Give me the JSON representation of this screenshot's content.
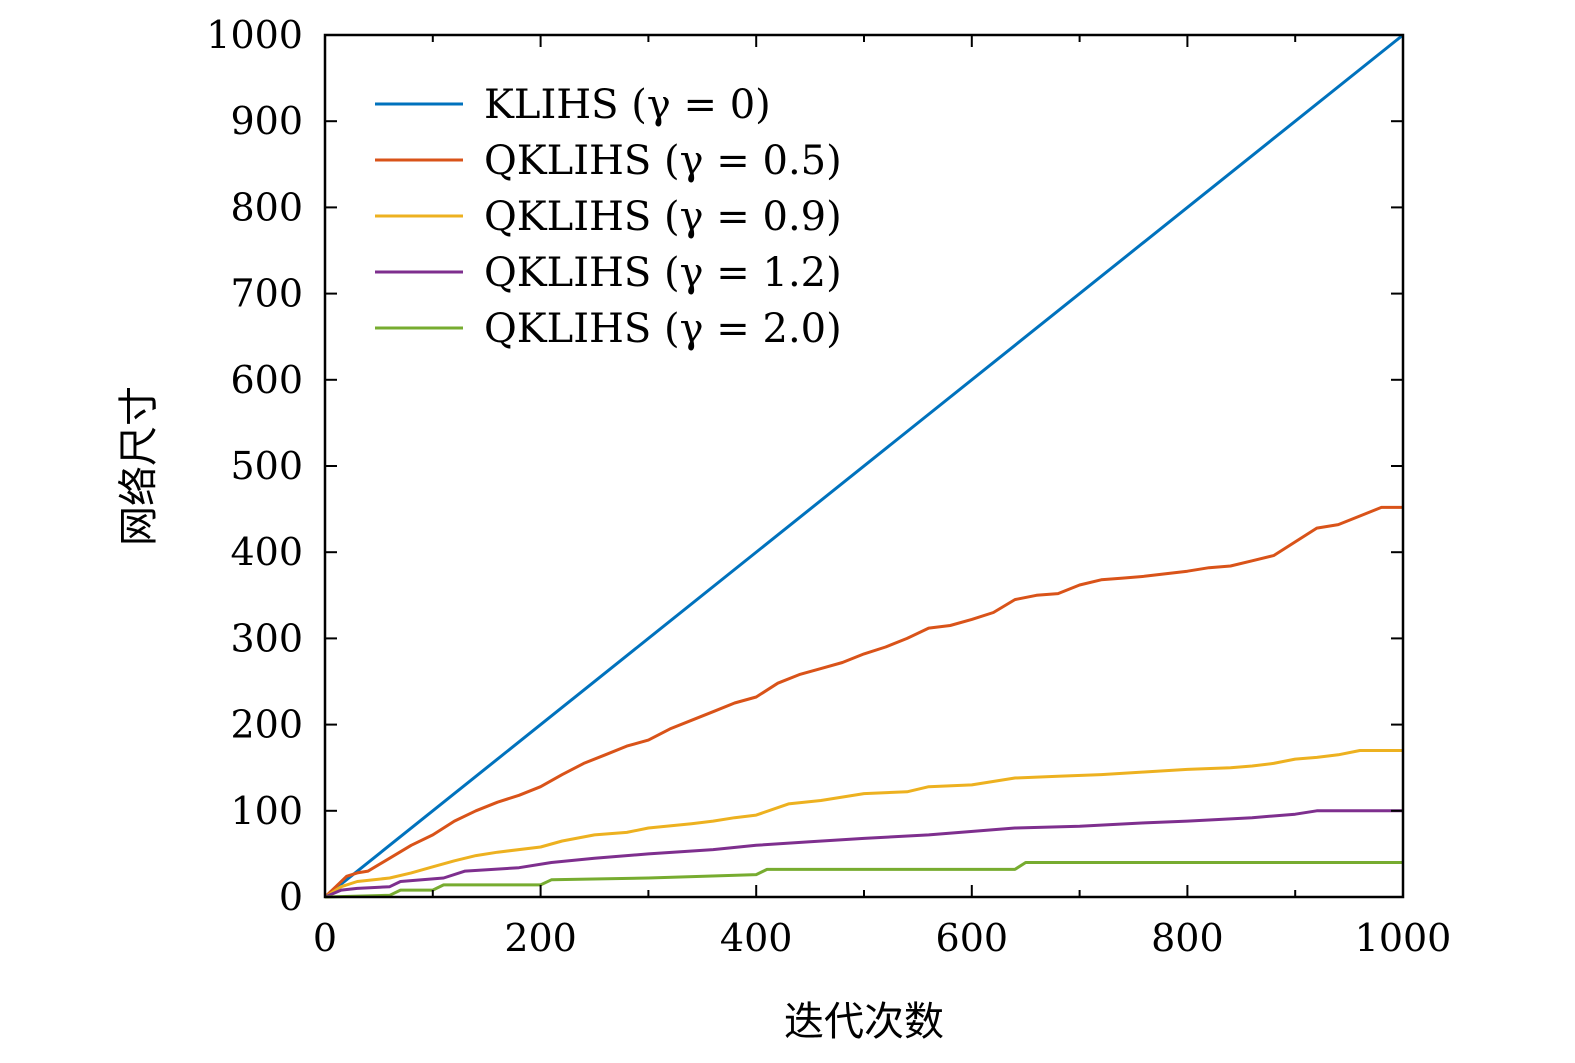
{
  "chart_data": {
    "type": "line",
    "xlabel": "迭代次数",
    "ylabel": "网络尺寸",
    "xlim": [
      0,
      1000
    ],
    "ylim": [
      0,
      1000
    ],
    "xticks": [
      0,
      200,
      400,
      600,
      800,
      1000
    ],
    "yticks": [
      0,
      100,
      200,
      300,
      400,
      500,
      600,
      700,
      800,
      900,
      1000
    ],
    "legend_position": "top-left",
    "grid": false,
    "series": [
      {
        "name": "KLIHS (γ = 0)",
        "color": "#0072bd",
        "x": [
          0,
          1000
        ],
        "y": [
          0,
          1000
        ]
      },
      {
        "name": "QKLIHS (γ = 0.5)",
        "color": "#d95319",
        "x": [
          0,
          10,
          20,
          30,
          40,
          60,
          80,
          100,
          120,
          140,
          160,
          180,
          200,
          220,
          240,
          260,
          280,
          300,
          320,
          340,
          360,
          380,
          400,
          420,
          440,
          460,
          480,
          500,
          520,
          540,
          560,
          580,
          600,
          620,
          640,
          660,
          680,
          700,
          720,
          740,
          760,
          780,
          800,
          820,
          840,
          860,
          880,
          900,
          920,
          940,
          960,
          980,
          1000
        ],
        "y": [
          0,
          12,
          24,
          28,
          30,
          45,
          60,
          72,
          88,
          100,
          110,
          118,
          128,
          142,
          155,
          165,
          175,
          182,
          195,
          205,
          215,
          225,
          232,
          248,
          258,
          265,
          272,
          282,
          290,
          300,
          312,
          315,
          322,
          330,
          345,
          350,
          352,
          362,
          368,
          370,
          372,
          375,
          378,
          382,
          384,
          390,
          396,
          412,
          428,
          432,
          442,
          452,
          452
        ]
      },
      {
        "name": "QKLIHS (γ = 0.9)",
        "color": "#edb120",
        "x": [
          0,
          15,
          30,
          60,
          80,
          100,
          120,
          140,
          160,
          200,
          220,
          250,
          280,
          300,
          340,
          360,
          380,
          400,
          430,
          460,
          500,
          540,
          560,
          600,
          640,
          680,
          720,
          760,
          800,
          840,
          860,
          880,
          900,
          920,
          940,
          960,
          1000
        ],
        "y": [
          0,
          12,
          18,
          22,
          28,
          35,
          42,
          48,
          52,
          58,
          65,
          72,
          75,
          80,
          85,
          88,
          92,
          95,
          108,
          112,
          120,
          122,
          128,
          130,
          138,
          140,
          142,
          145,
          148,
          150,
          152,
          155,
          160,
          162,
          165,
          170,
          170
        ]
      },
      {
        "name": "QKLIHS (γ = 1.2)",
        "color": "#7e2f8e",
        "x": [
          0,
          15,
          30,
          60,
          70,
          110,
          130,
          180,
          210,
          250,
          300,
          360,
          400,
          450,
          500,
          560,
          640,
          700,
          760,
          800,
          860,
          900,
          920,
          1000
        ],
        "y": [
          0,
          8,
          10,
          12,
          18,
          22,
          30,
          34,
          40,
          45,
          50,
          55,
          60,
          64,
          68,
          72,
          80,
          82,
          86,
          88,
          92,
          96,
          100,
          100
        ]
      },
      {
        "name": "QKLIHS (γ = 2.0)",
        "color": "#77ac30",
        "x": [
          0,
          60,
          70,
          100,
          110,
          200,
          210,
          300,
          400,
          410,
          640,
          650,
          1000
        ],
        "y": [
          0,
          2,
          8,
          8,
          14,
          14,
          20,
          22,
          26,
          32,
          32,
          40,
          40
        ]
      }
    ]
  }
}
